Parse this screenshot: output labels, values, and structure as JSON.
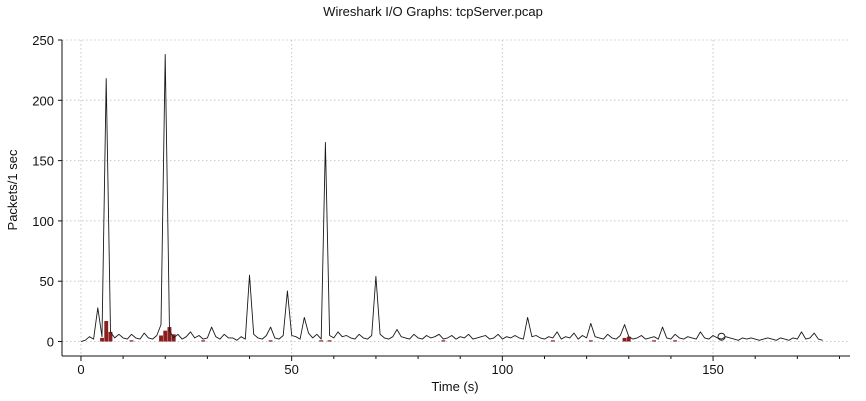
{
  "chart_data": {
    "type": "line",
    "title": "Wireshark I/O Graphs: tcpServer.pcap",
    "xlabel": "Time (s)",
    "ylabel": "Packets/1 sec",
    "xlim": [
      -4.5,
      182.5
    ],
    "ylim": [
      -12,
      250
    ],
    "xticks": [
      0,
      50,
      100,
      150
    ],
    "yticks": [
      0,
      50,
      100,
      150,
      200,
      250
    ],
    "grid": true,
    "series": [
      {
        "style": "line",
        "color": "#1a1a1a",
        "x": [
          0,
          1,
          2,
          3,
          4,
          5,
          6,
          7,
          8,
          9,
          10,
          11,
          12,
          13,
          14,
          15,
          16,
          17,
          18,
          19,
          20,
          21,
          22,
          23,
          24,
          25,
          26,
          27,
          28,
          29,
          30,
          31,
          32,
          33,
          34,
          35,
          36,
          37,
          38,
          39,
          40,
          41,
          42,
          43,
          44,
          45,
          46,
          47,
          48,
          49,
          50,
          51,
          52,
          53,
          54,
          55,
          56,
          57,
          58,
          59,
          60,
          61,
          62,
          63,
          64,
          65,
          66,
          67,
          68,
          69,
          70,
          71,
          72,
          73,
          74,
          75,
          76,
          77,
          78,
          79,
          80,
          81,
          82,
          83,
          84,
          85,
          86,
          87,
          88,
          89,
          90,
          91,
          92,
          93,
          94,
          95,
          96,
          97,
          98,
          99,
          100,
          101,
          102,
          103,
          104,
          105,
          106,
          107,
          108,
          109,
          110,
          111,
          112,
          113,
          114,
          115,
          116,
          117,
          118,
          119,
          120,
          121,
          122,
          123,
          124,
          125,
          126,
          127,
          128,
          129,
          130,
          131,
          132,
          133,
          134,
          135,
          136,
          137,
          138,
          139,
          140,
          141,
          142,
          143,
          144,
          145,
          146,
          147,
          148,
          149,
          150,
          151,
          152,
          153,
          154,
          155,
          156,
          157,
          158,
          159,
          160,
          161,
          162,
          163,
          164,
          165,
          166,
          167,
          168,
          169,
          170,
          171,
          172,
          173,
          174,
          175,
          176
        ],
        "y": [
          0,
          1,
          4,
          2,
          28,
          4,
          218,
          8,
          3,
          6,
          3,
          2,
          6,
          3,
          2,
          7,
          3,
          2,
          5,
          14,
          238,
          9,
          3,
          6,
          2,
          4,
          8,
          3,
          5,
          2,
          3,
          12,
          4,
          2,
          6,
          3,
          3,
          1,
          4,
          2,
          55,
          6,
          3,
          2,
          5,
          12,
          3,
          2,
          5,
          42,
          5,
          4,
          2,
          20,
          7,
          3,
          6,
          2,
          165,
          5,
          3,
          8,
          4,
          5,
          3,
          2,
          6,
          3,
          2,
          5,
          54,
          6,
          3,
          2,
          4,
          10,
          4,
          3,
          2,
          6,
          3,
          2,
          5,
          3,
          4,
          6,
          2,
          3,
          5,
          2,
          4,
          3,
          6,
          2,
          3,
          4,
          5,
          2,
          3,
          6,
          2,
          4,
          3,
          5,
          3,
          2,
          20,
          4,
          5,
          3,
          2,
          4,
          3,
          8,
          2,
          4,
          3,
          7,
          2,
          5,
          3,
          15,
          4,
          3,
          2,
          6,
          3,
          2,
          5,
          14,
          4,
          2,
          3,
          5,
          2,
          3,
          4,
          2,
          12,
          3,
          2,
          6,
          3,
          2,
          4,
          3,
          2,
          8,
          3,
          2,
          5,
          3,
          2,
          4,
          3,
          2,
          1,
          3,
          2,
          3,
          2,
          1,
          2,
          3,
          2,
          1,
          3,
          2,
          1,
          3,
          2,
          8,
          2,
          3,
          7,
          2,
          1
        ]
      },
      {
        "style": "bar",
        "color": "#8b1f1f",
        "x": [
          5,
          6,
          7,
          12,
          19,
          20,
          21,
          22,
          29,
          45,
          57,
          59,
          86,
          112,
          121,
          129,
          130,
          136,
          141
        ],
        "values": [
          3,
          17,
          8,
          1,
          5,
          9,
          12,
          6,
          1,
          1,
          1,
          1,
          1,
          1,
          1,
          3,
          4,
          1,
          1
        ]
      }
    ],
    "marker": {
      "x": 152,
      "y": 4
    }
  }
}
